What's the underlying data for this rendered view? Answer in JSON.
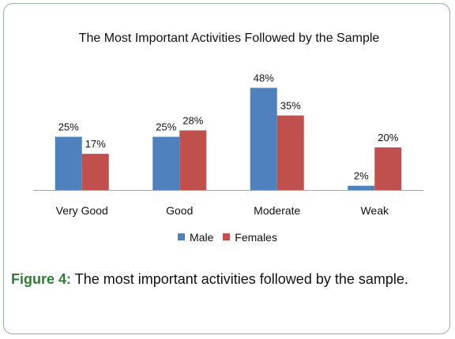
{
  "chart_data": {
    "type": "bar",
    "title": "The Most Important Activities Followed by the Sample",
    "categories": [
      "Very Good",
      "Good",
      "Moderate",
      "Weak"
    ],
    "series": [
      {
        "name": "Male",
        "values": [
          25,
          25,
          48,
          2
        ],
        "color": "#4f81bd"
      },
      {
        "name": "Females",
        "values": [
          17,
          28,
          35,
          20
        ],
        "color": "#c0504d"
      }
    ],
    "ylim": [
      0,
      50
    ],
    "value_suffix": "%",
    "grid": false,
    "legend_position": "bottom"
  },
  "caption": {
    "label": "Figure 4:",
    "text": "The most important activities followed by the sample."
  }
}
